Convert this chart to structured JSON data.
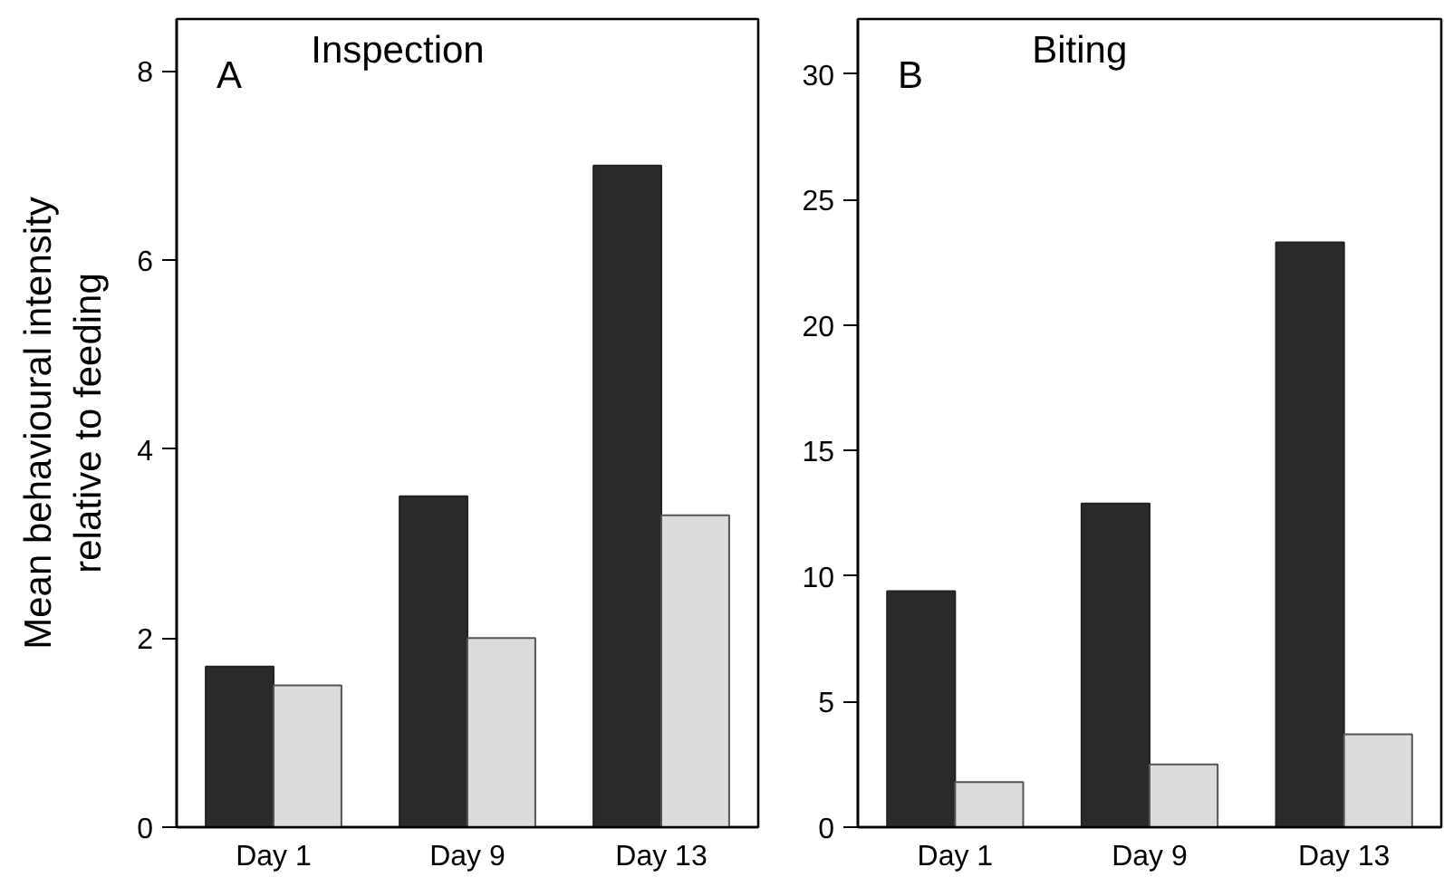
{
  "chart_data": [
    {
      "type": "bar",
      "title": "Inspection",
      "ylabel": "Mean behavioural intensity\nrelative to feeding",
      "annotations": [
        "A"
      ],
      "categories": [
        "Day 1",
        "Day 9",
        "Day 13"
      ],
      "series": [
        {
          "color": "#2a2a2a",
          "values": [
            1.7,
            3.5,
            7.0
          ]
        },
        {
          "color": "#dcdcdc",
          "values": [
            1.5,
            2.0,
            3.3
          ]
        }
      ],
      "ylim": [
        0,
        8.55
      ],
      "yticks": [
        0,
        2,
        4,
        6,
        8
      ],
      "grid": false
    },
    {
      "type": "bar",
      "title": "Biting",
      "annotations": [
        "B"
      ],
      "categories": [
        "Day 1",
        "Day 9",
        "Day 13"
      ],
      "series": [
        {
          "color": "#2a2a2a",
          "values": [
            9.4,
            12.9,
            23.3
          ]
        },
        {
          "color": "#dcdcdc",
          "values": [
            1.8,
            2.5,
            3.7
          ]
        }
      ],
      "ylim": [
        0,
        32.2
      ],
      "yticks": [
        0,
        5,
        10,
        15,
        20,
        25,
        30
      ],
      "grid": false
    }
  ]
}
